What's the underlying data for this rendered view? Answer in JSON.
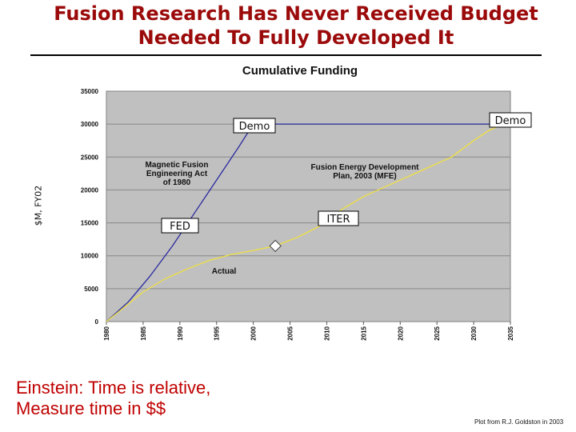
{
  "slide": {
    "title_line1": "Fusion Research Has Never Received Budget",
    "title_line2": "Needed To Fully Developed It",
    "quote_line1": "Einstein: Time is relative,",
    "quote_line2": "Measure time in $$",
    "credit": "Plot from R.J. Goldston in 2003"
  },
  "colors": {
    "title": "#9b0a0a",
    "plot_background": "#c0c0c0",
    "magnetic_fusion_line": "#2a2aa0",
    "fusion_plan_line": "#f0e040",
    "actual_line": "#f0e040",
    "quote": "#c00000"
  },
  "chart_data": {
    "type": "line",
    "title": "Cumulative Funding",
    "ylabel": "$M, FY02",
    "xlabel": "",
    "xlim": [
      1980,
      2035
    ],
    "ylim": [
      0,
      35000
    ],
    "grid": true,
    "x_ticks": [
      "1980",
      "1985",
      "1990",
      "1995",
      "2000",
      "2005",
      "2010",
      "2015",
      "2020",
      "2025",
      "2030",
      "2035"
    ],
    "y_ticks": [
      "0",
      "5000",
      "10000",
      "15000",
      "20000",
      "25000",
      "30000",
      "35000"
    ],
    "series": [
      {
        "name": "Magnetic Fusion Engineering Act of 1980",
        "color": "#2a2aa0",
        "points": [
          [
            1980,
            0
          ],
          [
            1983,
            3000
          ],
          [
            1986,
            7000
          ],
          [
            1989,
            11500
          ],
          [
            1992,
            16500
          ],
          [
            1995,
            21500
          ],
          [
            1998,
            26500
          ],
          [
            2000,
            30000
          ],
          [
            2005,
            30000
          ],
          [
            2010,
            30000
          ],
          [
            2015,
            30000
          ],
          [
            2020,
            30000
          ],
          [
            2025,
            30000
          ],
          [
            2030,
            30000
          ],
          [
            2034,
            30000
          ]
        ]
      },
      {
        "name": "Fusion Energy Development Plan, 2003 (MFE)",
        "color": "#f0e040",
        "points": [
          [
            2003,
            11500
          ],
          [
            2006,
            12800
          ],
          [
            2009,
            14500
          ],
          [
            2012,
            17000
          ],
          [
            2015,
            19000
          ],
          [
            2018,
            20500
          ],
          [
            2021,
            22000
          ],
          [
            2024,
            23500
          ],
          [
            2027,
            25000
          ],
          [
            2030,
            27500
          ],
          [
            2032,
            29000
          ],
          [
            2034,
            30000
          ]
        ]
      },
      {
        "name": "Actual",
        "color": "#f0e040",
        "points": [
          [
            1980,
            0
          ],
          [
            1982,
            1800
          ],
          [
            1985,
            4500
          ],
          [
            1988,
            6500
          ],
          [
            1991,
            8000
          ],
          [
            1994,
            9300
          ],
          [
            1997,
            10200
          ],
          [
            2000,
            10800
          ],
          [
            2003,
            11500
          ]
        ]
      }
    ],
    "annotations": [
      {
        "text": "Demo",
        "x": 2000,
        "y": 30000
      },
      {
        "text": "Demo",
        "x": 2034,
        "y": 30000
      },
      {
        "text": "FED",
        "x": 1991,
        "y": 14500
      },
      {
        "text": "ITER",
        "x": 2012,
        "y": 15500
      },
      {
        "text": "Magnetic Fusion Engineering Act of 1980",
        "x": 1990,
        "y": 22000
      },
      {
        "text": "Fusion Energy Development Plan, 2003 (MFE)",
        "x": 2019,
        "y": 22500
      },
      {
        "text": "Actual",
        "x": 1996,
        "y": 7500
      }
    ],
    "marker": {
      "shape": "diamond",
      "x": 2003,
      "y": 11500
    }
  }
}
